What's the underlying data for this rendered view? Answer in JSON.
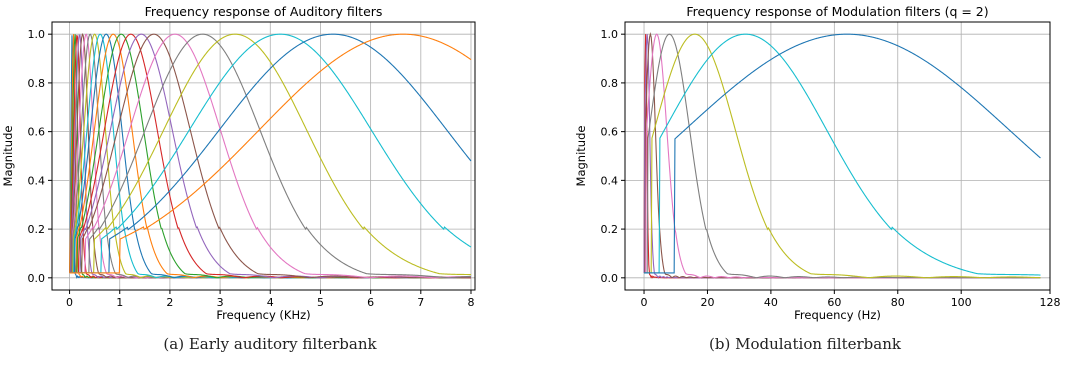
{
  "captions": {
    "a": "(a) Early auditory filterbank",
    "b": "(b) Modulation filterbank"
  },
  "colors": [
    "#1f77b4",
    "#ff7f0e",
    "#2ca02c",
    "#d62728",
    "#9467bd",
    "#8c564b",
    "#e377c2",
    "#7f7f7f",
    "#bcbd22",
    "#17becf"
  ],
  "chart_data": [
    {
      "type": "line",
      "title": "Frequency response of Auditory filters",
      "xlabel": "Frequency (KHz)",
      "ylabel": "Magnitude",
      "xlim": [
        -0.35,
        8.08
      ],
      "ylim": [
        -0.05,
        1.05
      ],
      "xticks": [
        0,
        1,
        2,
        3,
        4,
        5,
        6,
        7,
        8
      ],
      "yticks": [
        0.0,
        0.2,
        0.4,
        0.6,
        0.8,
        1.0
      ],
      "ytick_labels": [
        "0.0",
        "0.2",
        "0.4",
        "0.6",
        "0.8",
        "1.0"
      ],
      "grid": true,
      "x_max": 8,
      "filter_shape": "bell",
      "center_frequencies": [
        0.05,
        0.08,
        0.11,
        0.15,
        0.2,
        0.26,
        0.33,
        0.41,
        0.5,
        0.61,
        0.73,
        0.87,
        1.03,
        1.22,
        1.43,
        1.68,
        2.1,
        2.65,
        3.3,
        4.2,
        5.25,
        6.65
      ],
      "relative_bandwidth": 0.27,
      "color_offset": 0
    },
    {
      "type": "line",
      "title": "Frequency response of Modulation filters (q = 2)",
      "xlabel": "Frequency (Hz)",
      "ylabel": "Magnitude",
      "xlim": [
        -6,
        128
      ],
      "ylim": [
        -0.05,
        1.05
      ],
      "xticks": [
        0,
        20,
        40,
        60,
        80,
        100,
        128
      ],
      "yticks": [
        0.0,
        0.2,
        0.4,
        0.6,
        0.8,
        1.0
      ],
      "ytick_labels": [
        "0.0",
        "0.2",
        "0.4",
        "0.6",
        "0.8",
        "1.0"
      ],
      "grid": true,
      "x_max": 125,
      "filter_shape": "bell",
      "center_frequencies": [
        0.5,
        1,
        2,
        4,
        8,
        16,
        32,
        64
      ],
      "relative_bandwidth": 0.5,
      "color_offset": 3
    }
  ]
}
